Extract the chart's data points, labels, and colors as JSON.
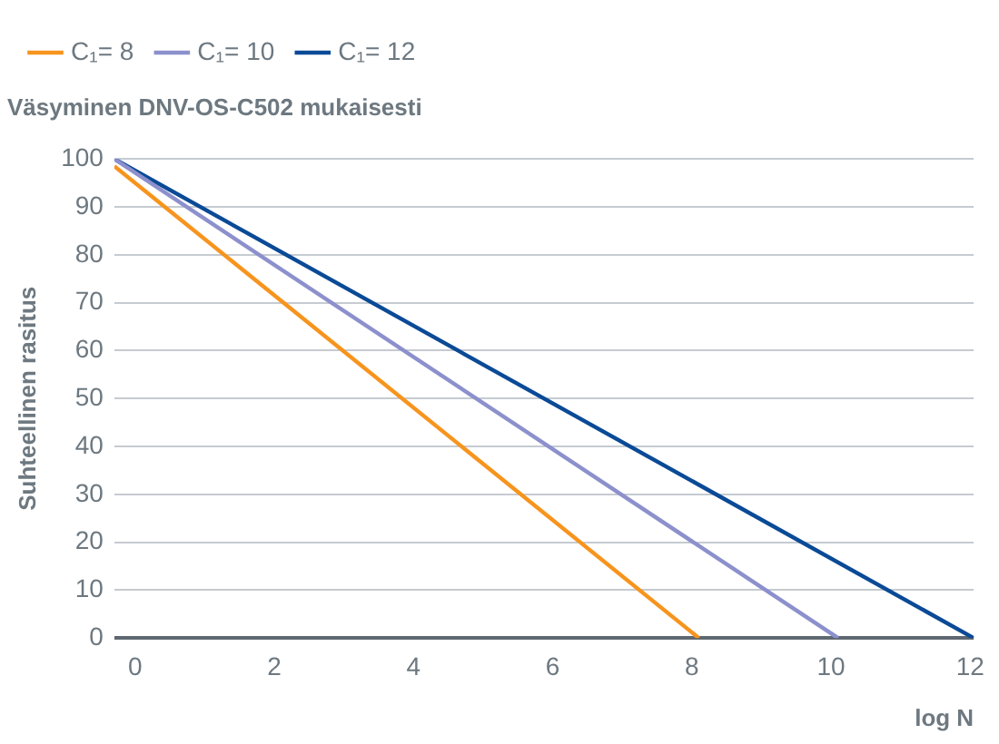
{
  "chart_data": {
    "type": "line",
    "title": "Väsyminen DNV-OS-C502 mukaisesti",
    "xlabel": "log N",
    "ylabel": "Suhteellinen rasitus",
    "series": [
      {
        "name": "C₁= 8",
        "color": "#f7941d",
        "x": [
          -0.3,
          8.1
        ],
        "values": [
          98.5,
          0
        ]
      },
      {
        "name": "C₁= 10",
        "color": "#8c90cc",
        "x": [
          -0.3,
          10.1
        ],
        "values": [
          100,
          0
        ]
      },
      {
        "name": "C₁= 12",
        "color": "#0a4a96",
        "x": [
          -0.3,
          12.05
        ],
        "values": [
          100,
          0
        ]
      }
    ],
    "xlim": [
      -0.3,
      12.05
    ],
    "xticks": [
      0,
      2,
      4,
      6,
      8,
      10,
      12
    ],
    "ylim": [
      0,
      100
    ],
    "yticks": [
      0,
      10,
      20,
      30,
      40,
      50,
      60,
      70,
      80,
      90,
      100
    ],
    "grid": "y",
    "legend": "top",
    "marker": "none",
    "line_style": "solid"
  }
}
